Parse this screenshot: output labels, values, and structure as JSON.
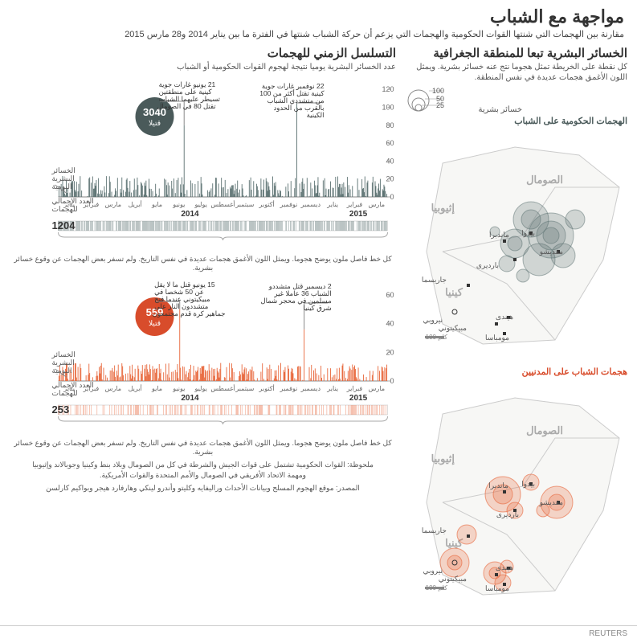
{
  "header": {
    "title": "مواجهة مع الشباب",
    "subtitle": "مقارنة بين الهجمات التي شنتها القوات الحكومية والهجمات التي يزعم أن حركة الشباب شنتها في الفترة ما بين يناير 2014 و28 مارس 2015"
  },
  "geo_panel": {
    "title": "الخسائر البشرية تبعا للمنطقة الجغرافية",
    "subtitle": "كل نقطة على الخريطة تمثل هجوما نتج عنه خسائر بشرية. ويمثل اللون الأغمق هجمات عديدة في نفس المنطقة.",
    "legend_title": "خسائر بشرية",
    "legend_values": [
      "25",
      "50",
      "100"
    ],
    "map1_label": "الهجمات الحكومية على الشباب",
    "map2_label": "هجمات الشباب على المدنيين",
    "countries": [
      "الصومال",
      "إثيوبيا",
      "كينيا"
    ],
    "cities": [
      "مقديشو",
      "بيدوا",
      "ماندبرا",
      "بارديرى",
      "جاريسما",
      "نيروبي",
      "هيندى",
      "مومباسا",
      "مبيكيتوني"
    ],
    "scale": "كلم 100"
  },
  "timeline_panel": {
    "title": "التسلسل الزمني للهجمات",
    "subtitle": "عدد الخسائر البشرية يوميا نتيجة لهجوم القوات الحكومية أو الشباب"
  },
  "chart1": {
    "color": "#4a5a5a",
    "bar_color": "#5a7070",
    "badge_value": "3040",
    "badge_label": "قتيلا",
    "total": "1204",
    "ymax": 130,
    "yticks": [
      0,
      20,
      40,
      60,
      80,
      100,
      120
    ],
    "annot1": "21 يونيو غارات جوية كينية على منطقتين تسيطر عليهما الشباب تقتل 80 في الصومال",
    "annot2": "22 نوفمبر غارات جوية كينية تقتل أكثر من 100 من متشددي الشباب بالقرب من الحدود الكينية",
    "label_daily": "الخسائر البشرية اليومية",
    "label_total": "العدد الإجمالي للهجمات",
    "caption": "كل خط فاصل ملون يوضح هجوما. ويمثل اللون الأغمق هجمات عديدة في نفس التاريخ. ولم تسفر بعض الهجمات عن وقوع خسائر بشرية."
  },
  "chart2": {
    "color": "#d84c2b",
    "bar_color": "#e8663a",
    "badge_value": "559",
    "badge_label": "قتيلا",
    "total": "253",
    "ymax": 70,
    "yticks": [
      0,
      20,
      40,
      60
    ],
    "annot1": "15 يونيو قتل ما لا يقل عن 50 شخصا في مبيكيتوني عندما فتح متشددون النار على جماهير كرة قدم مجتمعون",
    "annot2": "2 ديسمبر قتل متشددو الشباب 36 عاملا غير مسلمين في محجر شمال شرق كينيا",
    "label_daily": "الخسائر البشرية اليومية",
    "label_total": "العدد الإجمالي للهجمات",
    "caption": "كل خط فاصل ملون يوضح هجوما. ويمثل اللون الأغمق هجمات عديدة في نفس التاريخ. ولم تسفر بعض الهجمات عن وقوع خسائر بشرية."
  },
  "months": [
    "يناير",
    "فبراير",
    "مارس",
    "أبريل",
    "مايو",
    "يونيو",
    "يوليو",
    "أغسطس",
    "سبتمبر",
    "أكتوبر",
    "نوفمبر",
    "ديسمبر",
    "يناير",
    "فبراير",
    "مارس"
  ],
  "years": [
    "2014",
    "2015"
  ],
  "note": "ملحوظة: القوات الحكومية تشتمل على قوات الجيش والشرطة في كل من الصومال وبلاد بنط وكينيا وجوبالاند وإثيوبيا ومهمة الاتحاد الأفريقي في الصومال والأمم المتحدة والقوات الأمريكية.",
  "source": "المصدر: موقع الهجوم المسلح وبيانات الأحداث وراليفايه وكليتو وأندرو لينكي وهارفارد هيجر وبواكيم كارلسن",
  "footer_brand": "REUTERS",
  "map_colors": {
    "gov": "#5a7070",
    "civ": "#e8663a",
    "land": "#f5f5f3",
    "border": "#bbb"
  }
}
